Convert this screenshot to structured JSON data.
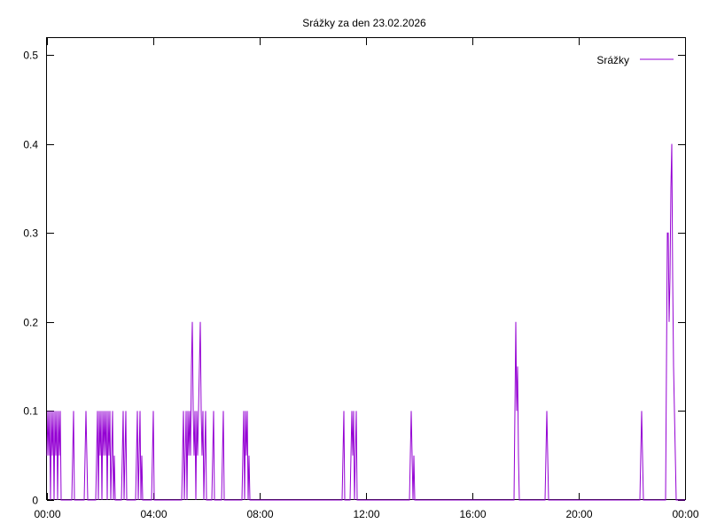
{
  "chart_data": {
    "type": "line",
    "title": "Srážky za den 23.02.2026",
    "xlabel": "",
    "ylabel": "",
    "xlim": [
      0,
      1440
    ],
    "ylim": [
      0,
      0.5
    ],
    "grid": false,
    "legend_position": "top-right",
    "x_ticks": [
      {
        "minutes": 0,
        "label": "00:00"
      },
      {
        "minutes": 240,
        "label": "04:00"
      },
      {
        "minutes": 480,
        "label": "08:00"
      },
      {
        "minutes": 720,
        "label": "12:00"
      },
      {
        "minutes": 960,
        "label": "16:00"
      },
      {
        "minutes": 1200,
        "label": "20:00"
      },
      {
        "minutes": 1440,
        "label": "00:00"
      }
    ],
    "y_ticks": [
      {
        "value": 0,
        "label": "0"
      },
      {
        "value": 0.1,
        "label": "0.1"
      },
      {
        "value": 0.2,
        "label": "0.2"
      },
      {
        "value": 0.3,
        "label": "0.3"
      },
      {
        "value": 0.4,
        "label": "0.4"
      },
      {
        "value": 0.5,
        "label": "0.5"
      }
    ],
    "series": [
      {
        "name": "Srážky",
        "color": "#9400d3",
        "points": [
          [
            0,
            0.05
          ],
          [
            2,
            0.1
          ],
          [
            4,
            0.05
          ],
          [
            6,
            0.1
          ],
          [
            8,
            0
          ],
          [
            10,
            0.1
          ],
          [
            12,
            0.05
          ],
          [
            14,
            0.1
          ],
          [
            16,
            0
          ],
          [
            18,
            0.1
          ],
          [
            20,
            0.05
          ],
          [
            22,
            0.1
          ],
          [
            24,
            0
          ],
          [
            26,
            0.1
          ],
          [
            28,
            0.05
          ],
          [
            30,
            0.1
          ],
          [
            32,
            0
          ],
          [
            34,
            0
          ],
          [
            56,
            0
          ],
          [
            58,
            0.05
          ],
          [
            60,
            0.1
          ],
          [
            62,
            0
          ],
          [
            64,
            0
          ],
          [
            84,
            0
          ],
          [
            86,
            0.05
          ],
          [
            88,
            0.1
          ],
          [
            90,
            0.05
          ],
          [
            92,
            0
          ],
          [
            110,
            0
          ],
          [
            112,
            0.05
          ],
          [
            114,
            0.1
          ],
          [
            116,
            0
          ],
          [
            118,
            0.1
          ],
          [
            120,
            0.05
          ],
          [
            122,
            0.1
          ],
          [
            124,
            0
          ],
          [
            126,
            0.1
          ],
          [
            128,
            0.05
          ],
          [
            130,
            0.1
          ],
          [
            132,
            0.05
          ],
          [
            134,
            0.1
          ],
          [
            136,
            0
          ],
          [
            138,
            0.1
          ],
          [
            140,
            0.05
          ],
          [
            142,
            0.1
          ],
          [
            144,
            0
          ],
          [
            146,
            0.05
          ],
          [
            148,
            0.1
          ],
          [
            150,
            0
          ],
          [
            152,
            0.05
          ],
          [
            154,
            0
          ],
          [
            156,
            0
          ],
          [
            168,
            0
          ],
          [
            170,
            0.05
          ],
          [
            172,
            0.1
          ],
          [
            174,
            0
          ],
          [
            176,
            0.05
          ],
          [
            178,
            0.1
          ],
          [
            180,
            0
          ],
          [
            182,
            0
          ],
          [
            200,
            0
          ],
          [
            202,
            0.05
          ],
          [
            204,
            0.1
          ],
          [
            206,
            0
          ],
          [
            208,
            0.05
          ],
          [
            210,
            0.1
          ],
          [
            212,
            0
          ],
          [
            214,
            0.05
          ],
          [
            216,
            0
          ],
          [
            218,
            0
          ],
          [
            236,
            0
          ],
          [
            238,
            0.05
          ],
          [
            240,
            0.1
          ],
          [
            242,
            0
          ],
          [
            244,
            0
          ],
          [
            304,
            0
          ],
          [
            306,
            0.05
          ],
          [
            308,
            0.1
          ],
          [
            310,
            0
          ],
          [
            312,
            0.05
          ],
          [
            314,
            0.1
          ],
          [
            316,
            0
          ],
          [
            318,
            0.1
          ],
          [
            320,
            0.05
          ],
          [
            322,
            0.1
          ],
          [
            324,
            0.05
          ],
          [
            326,
            0.15
          ],
          [
            328,
            0.2
          ],
          [
            330,
            0.1
          ],
          [
            332,
            0.05
          ],
          [
            334,
            0.1
          ],
          [
            336,
            0
          ],
          [
            338,
            0.1
          ],
          [
            340,
            0.05
          ],
          [
            342,
            0.1
          ],
          [
            344,
            0.15
          ],
          [
            346,
            0.2
          ],
          [
            348,
            0.1
          ],
          [
            350,
            0.05
          ],
          [
            352,
            0.1
          ],
          [
            354,
            0
          ],
          [
            356,
            0.05
          ],
          [
            358,
            0.1
          ],
          [
            360,
            0
          ],
          [
            362,
            0
          ],
          [
            372,
            0
          ],
          [
            374,
            0.05
          ],
          [
            376,
            0.1
          ],
          [
            378,
            0
          ],
          [
            380,
            0
          ],
          [
            394,
            0
          ],
          [
            396,
            0.05
          ],
          [
            398,
            0.1
          ],
          [
            400,
            0
          ],
          [
            402,
            0
          ],
          [
            440,
            0
          ],
          [
            442,
            0.05
          ],
          [
            444,
            0.1
          ],
          [
            446,
            0
          ],
          [
            448,
            0.1
          ],
          [
            450,
            0.05
          ],
          [
            452,
            0.1
          ],
          [
            454,
            0
          ],
          [
            456,
            0.05
          ],
          [
            458,
            0
          ],
          [
            460,
            0
          ],
          [
            666,
            0
          ],
          [
            668,
            0.05
          ],
          [
            670,
            0.1
          ],
          [
            672,
            0
          ],
          [
            674,
            0
          ],
          [
            684,
            0
          ],
          [
            686,
            0.05
          ],
          [
            688,
            0.1
          ],
          [
            690,
            0.05
          ],
          [
            692,
            0.1
          ],
          [
            694,
            0
          ],
          [
            696,
            0.05
          ],
          [
            698,
            0.1
          ],
          [
            700,
            0
          ],
          [
            702,
            0
          ],
          [
            818,
            0
          ],
          [
            820,
            0.05
          ],
          [
            822,
            0.1
          ],
          [
            824,
            0.05
          ],
          [
            826,
            0
          ],
          [
            828,
            0.05
          ],
          [
            830,
            0
          ],
          [
            832,
            0
          ],
          [
            1054,
            0
          ],
          [
            1056,
            0.1
          ],
          [
            1058,
            0.2
          ],
          [
            1060,
            0.1
          ],
          [
            1062,
            0.15
          ],
          [
            1064,
            0.05
          ],
          [
            1066,
            0
          ],
          [
            1068,
            0
          ],
          [
            1124,
            0
          ],
          [
            1126,
            0.05
          ],
          [
            1128,
            0.1
          ],
          [
            1130,
            0.05
          ],
          [
            1132,
            0
          ],
          [
            1134,
            0
          ],
          [
            1338,
            0
          ],
          [
            1340,
            0.05
          ],
          [
            1342,
            0.1
          ],
          [
            1344,
            0.05
          ],
          [
            1346,
            0
          ],
          [
            1348,
            0
          ],
          [
            1396,
            0
          ],
          [
            1398,
            0.15
          ],
          [
            1400,
            0.3
          ],
          [
            1402,
            0.3
          ],
          [
            1404,
            0.2
          ],
          [
            1406,
            0.25
          ],
          [
            1408,
            0.35
          ],
          [
            1410,
            0.4
          ],
          [
            1412,
            0.25
          ],
          [
            1414,
            0.15
          ],
          [
            1416,
            0.1
          ],
          [
            1418,
            0.05
          ],
          [
            1420,
            0
          ],
          [
            1440,
            0
          ]
        ]
      }
    ]
  }
}
